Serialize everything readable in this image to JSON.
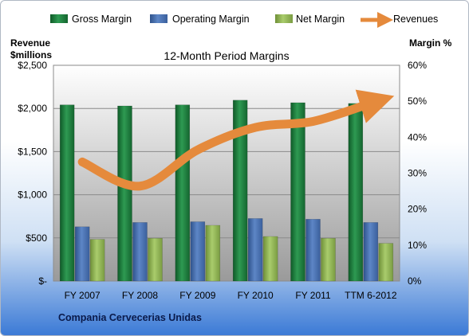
{
  "chart_data": {
    "type": "bar",
    "title": "12-Month Period Margins",
    "company": "Compania Cervecerias Unidas",
    "left_axis_label_line1": "Revenue",
    "left_axis_label_line2": "$millions",
    "right_axis_label": "Margin %",
    "categories": [
      "FY 2007",
      "FY 2008",
      "FY 2009",
      "FY 2010",
      "FY 2011",
      "TTM 6-2012"
    ],
    "left_ticks": [
      "$-",
      "$500",
      "$1,000",
      "$1,500",
      "$2,000",
      "$2,500"
    ],
    "right_ticks": [
      "0%",
      "10%",
      "20%",
      "30%",
      "40%",
      "50%",
      "60%"
    ],
    "ylim_left": [
      0,
      2500
    ],
    "ylim_right": [
      0,
      60
    ],
    "legend_placement": "top",
    "series": [
      {
        "name": "Gross Margin",
        "type": "bar",
        "axis": "right",
        "color": "#1e7a3e",
        "values": [
          49,
          48.7,
          49,
          50.3,
          49.6,
          49.4
        ]
      },
      {
        "name": "Operating Margin",
        "type": "bar",
        "axis": "right",
        "color": "#4670b0",
        "values": [
          15.1,
          16.3,
          16.5,
          17.4,
          17.2,
          16.3
        ]
      },
      {
        "name": "Net Margin",
        "type": "bar",
        "axis": "right",
        "color": "#96ba5a",
        "values": [
          11.6,
          11.9,
          15.5,
          12.4,
          11.9,
          10.5
        ]
      },
      {
        "name": "Revenues",
        "type": "line",
        "axis": "left",
        "color": "#e58a3c",
        "values": [
          1380,
          1100,
          1520,
          1780,
          1850,
          2060
        ]
      }
    ]
  }
}
